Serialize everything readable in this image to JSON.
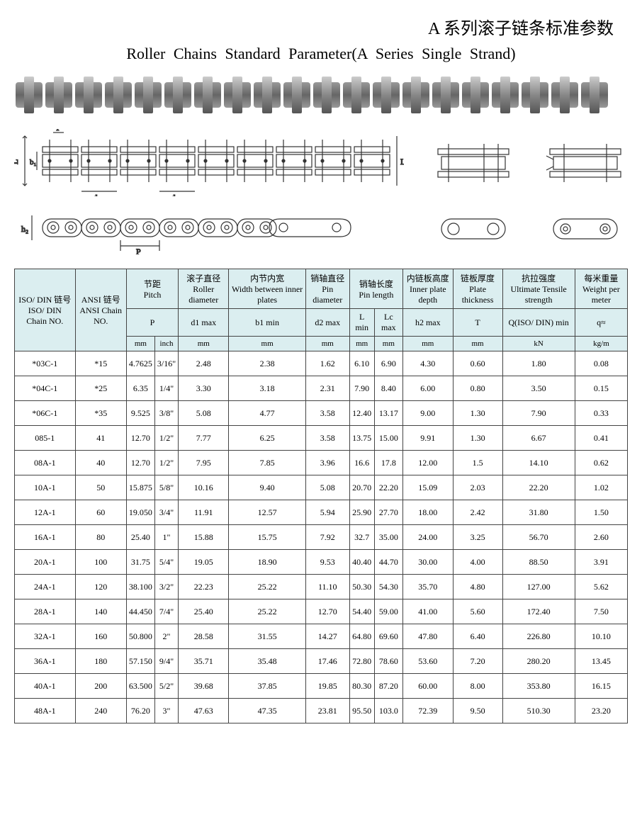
{
  "title": {
    "zh": "A 系列滚子链条标准参数",
    "en": "Roller Chains Standard Parameter(A Series Single Strand)"
  },
  "table": {
    "headers": {
      "iso_din": {
        "zh": "ISO/ DIN 链号",
        "en": "ISO/ DIN Chain NO."
      },
      "ansi": {
        "zh": "ANSI 链号",
        "en": "ANSI Chain NO."
      },
      "pitch": {
        "zh": "节距",
        "en": "Pitch",
        "sym": "P",
        "units": [
          "mm",
          "inch"
        ]
      },
      "roller_dia": {
        "zh": "滚子直径",
        "en": "Roller diameter",
        "sym": "d1 max",
        "unit": "mm"
      },
      "width_plates": {
        "zh": "内节内宽",
        "en": "Width between inner plates",
        "sym": "b1 min",
        "unit": "mm"
      },
      "pin_dia": {
        "zh": "销轴直径",
        "en": "Pin diameter",
        "sym": "d2 max",
        "unit": "mm"
      },
      "pin_len": {
        "zh": "销轴长度",
        "en": "Pin length",
        "syms": [
          "L min",
          "Lc max"
        ],
        "unit": "mm"
      },
      "plate_depth": {
        "zh": "内链板高度",
        "en": "Inner plate depth",
        "sym": "h2 max",
        "unit": "mm"
      },
      "plate_thick": {
        "zh": "链板厚度",
        "en": "Plate thickness",
        "sym": "T",
        "unit": "mm"
      },
      "tensile": {
        "zh": "抗拉强度",
        "en": "Ultimate Tensile strength",
        "sym": "Q(ISO/ DIN) min",
        "unit": "kN"
      },
      "weight": {
        "zh": "每米重量",
        "en": "Weight per meter",
        "sym": "q≈",
        "unit": "kg/m"
      }
    },
    "rows": [
      {
        "iso": "*03C-1",
        "ansi": "*15",
        "p_mm": "4.7625",
        "p_in": "3/16\"",
        "d1": "2.48",
        "b1": "2.38",
        "d2": "1.62",
        "L": "6.10",
        "Lc": "6.90",
        "h2": "4.30",
        "T": "0.60",
        "Q": "1.80",
        "q": "0.08"
      },
      {
        "iso": "*04C-1",
        "ansi": "*25",
        "p_mm": "6.35",
        "p_in": "1/4\"",
        "d1": "3.30",
        "b1": "3.18",
        "d2": "2.31",
        "L": "7.90",
        "Lc": "8.40",
        "h2": "6.00",
        "T": "0.80",
        "Q": "3.50",
        "q": "0.15"
      },
      {
        "iso": "*06C-1",
        "ansi": "*35",
        "p_mm": "9.525",
        "p_in": "3/8\"",
        "d1": "5.08",
        "b1": "4.77",
        "d2": "3.58",
        "L": "12.40",
        "Lc": "13.17",
        "h2": "9.00",
        "T": "1.30",
        "Q": "7.90",
        "q": "0.33"
      },
      {
        "iso": "085-1",
        "ansi": "41",
        "p_mm": "12.70",
        "p_in": "1/2\"",
        "d1": "7.77",
        "b1": "6.25",
        "d2": "3.58",
        "L": "13.75",
        "Lc": "15.00",
        "h2": "9.91",
        "T": "1.30",
        "Q": "6.67",
        "q": "0.41"
      },
      {
        "iso": "08A-1",
        "ansi": "40",
        "p_mm": "12.70",
        "p_in": "1/2\"",
        "d1": "7.95",
        "b1": "7.85",
        "d2": "3.96",
        "L": "16.6",
        "Lc": "17.8",
        "h2": "12.00",
        "T": "1.5",
        "Q": "14.10",
        "q": "0.62"
      },
      {
        "iso": "10A-1",
        "ansi": "50",
        "p_mm": "15.875",
        "p_in": "5/8\"",
        "d1": "10.16",
        "b1": "9.40",
        "d2": "5.08",
        "L": "20.70",
        "Lc": "22.20",
        "h2": "15.09",
        "T": "2.03",
        "Q": "22.20",
        "q": "1.02"
      },
      {
        "iso": "12A-1",
        "ansi": "60",
        "p_mm": "19.050",
        "p_in": "3/4\"",
        "d1": "11.91",
        "b1": "12.57",
        "d2": "5.94",
        "L": "25.90",
        "Lc": "27.70",
        "h2": "18.00",
        "T": "2.42",
        "Q": "31.80",
        "q": "1.50"
      },
      {
        "iso": "16A-1",
        "ansi": "80",
        "p_mm": "25.40",
        "p_in": "1\"",
        "d1": "15.88",
        "b1": "15.75",
        "d2": "7.92",
        "L": "32.7",
        "Lc": "35.00",
        "h2": "24.00",
        "T": "3.25",
        "Q": "56.70",
        "q": "2.60"
      },
      {
        "iso": "20A-1",
        "ansi": "100",
        "p_mm": "31.75",
        "p_in": "5/4\"",
        "d1": "19.05",
        "b1": "18.90",
        "d2": "9.53",
        "L": "40.40",
        "Lc": "44.70",
        "h2": "30.00",
        "T": "4.00",
        "Q": "88.50",
        "q": "3.91"
      },
      {
        "iso": "24A-1",
        "ansi": "120",
        "p_mm": "38.100",
        "p_in": "3/2\"",
        "d1": "22.23",
        "b1": "25.22",
        "d2": "11.10",
        "L": "50.30",
        "Lc": "54.30",
        "h2": "35.70",
        "T": "4.80",
        "Q": "127.00",
        "q": "5.62"
      },
      {
        "iso": "28A-1",
        "ansi": "140",
        "p_mm": "44.450",
        "p_in": "7/4\"",
        "d1": "25.40",
        "b1": "25.22",
        "d2": "12.70",
        "L": "54.40",
        "Lc": "59.00",
        "h2": "41.00",
        "T": "5.60",
        "Q": "172.40",
        "q": "7.50"
      },
      {
        "iso": "32A-1",
        "ansi": "160",
        "p_mm": "50.800",
        "p_in": "2\"",
        "d1": "28.58",
        "b1": "31.55",
        "d2": "14.27",
        "L": "64.80",
        "Lc": "69.60",
        "h2": "47.80",
        "T": "6.40",
        "Q": "226.80",
        "q": "10.10"
      },
      {
        "iso": "36A-1",
        "ansi": "180",
        "p_mm": "57.150",
        "p_in": "9/4\"",
        "d1": "35.71",
        "b1": "35.48",
        "d2": "17.46",
        "L": "72.80",
        "Lc": "78.60",
        "h2": "53.60",
        "T": "7.20",
        "Q": "280.20",
        "q": "13.45"
      },
      {
        "iso": "40A-1",
        "ansi": "200",
        "p_mm": "63.500",
        "p_in": "5/2\"",
        "d1": "39.68",
        "b1": "37.85",
        "d2": "19.85",
        "L": "80.30",
        "Lc": "87.20",
        "h2": "60.00",
        "T": "8.00",
        "Q": "353.80",
        "q": "16.15"
      },
      {
        "iso": "48A-1",
        "ansi": "240",
        "p_mm": "76.20",
        "p_in": "3\"",
        "d1": "47.63",
        "b1": "47.35",
        "d2": "23.81",
        "L": "95.50",
        "Lc": "103.0",
        "h2": "72.39",
        "T": "9.50",
        "Q": "510.30",
        "q": "23.20"
      }
    ]
  },
  "diagram_labels": {
    "L": "L",
    "b1": "b₁",
    "T": "T",
    "Lc": "Lc",
    "d1": "d₁",
    "d2": "d₂",
    "h2": "h₂",
    "P": "P"
  },
  "colors": {
    "header_bg": "#dbeef0",
    "border": "#444444",
    "text": "#000000",
    "bg": "#ffffff"
  }
}
